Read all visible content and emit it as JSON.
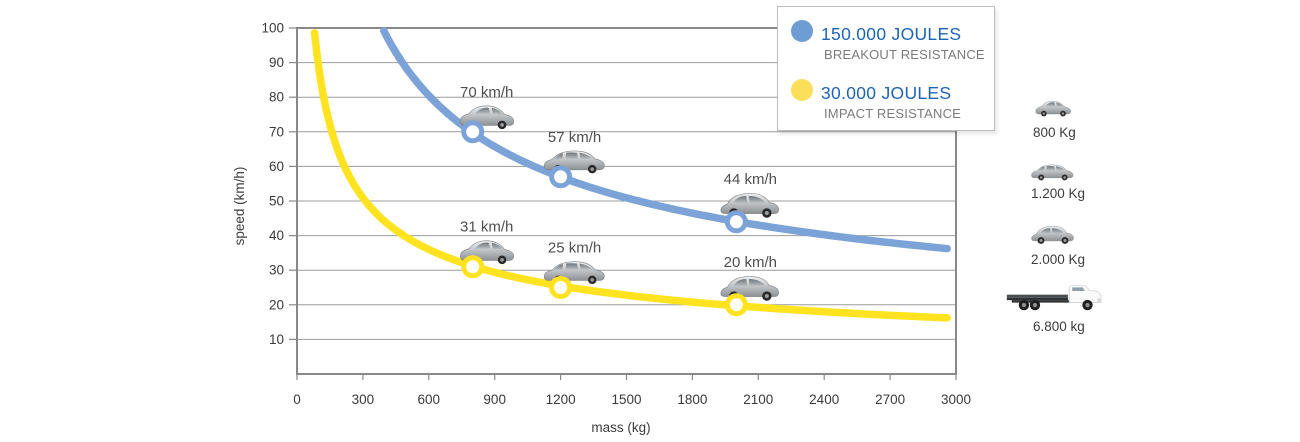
{
  "page": {
    "background": "#ffffff"
  },
  "chart_data": {
    "type": "line",
    "title": "",
    "xlabel": "mass (kg)",
    "ylabel": "speed (km/h)",
    "x_axis": {
      "min": 0,
      "max": 3000,
      "ticks": [
        0,
        300,
        600,
        900,
        1200,
        1500,
        1800,
        2100,
        2400,
        2700,
        3000
      ]
    },
    "y_axis": {
      "min": 0,
      "max": 100,
      "ticks": [
        10,
        20,
        30,
        40,
        50,
        60,
        70,
        80,
        90,
        100
      ]
    },
    "grid": "horizontal",
    "grid_color": "#9c9c9c",
    "axis_color": "#888888",
    "relationship": "speed_kmh = 3.6 * sqrt(2 * energy_joules / mass_kg)",
    "legend_position": "top-right",
    "series": [
      {
        "name": "150.000 JOULES",
        "subtitle": "BREAKOUT RESISTANCE",
        "energy_joules": 150000,
        "color": "#7ca3d7",
        "legend_color": "#6d9dd3",
        "mass_domain_kg": [
          395,
          2960
        ],
        "points": [
          {
            "mass_kg": 800,
            "speed_kmh": 70,
            "label": "70 km/h",
            "vehicle": "city-car"
          },
          {
            "mass_kg": 1200,
            "speed_kmh": 57,
            "label": "57 km/h",
            "vehicle": "hatchback"
          },
          {
            "mass_kg": 2000,
            "speed_kmh": 44,
            "label": "44 km/h",
            "vehicle": "suv"
          }
        ]
      },
      {
        "name": "30.000 JOULES",
        "subtitle": "IMPACT RESISTANCE",
        "energy_joules": 30000,
        "color": "#ffe320",
        "legend_color": "#fbdf5b",
        "mass_domain_kg": [
          80,
          2960
        ],
        "points": [
          {
            "mass_kg": 800,
            "speed_kmh": 31,
            "label": "31 km/h",
            "vehicle": "city-car"
          },
          {
            "mass_kg": 1200,
            "speed_kmh": 25,
            "label": "25 km/h",
            "vehicle": "hatchback"
          },
          {
            "mass_kg": 2000,
            "speed_kmh": 20,
            "label": "20 km/h",
            "vehicle": "suv"
          }
        ]
      }
    ]
  },
  "vehicle_key": {
    "items": [
      {
        "label": "800 Kg",
        "vehicle": "city-car"
      },
      {
        "label": "1.200 Kg",
        "vehicle": "hatchback"
      },
      {
        "label": "2.000 Kg",
        "vehicle": "suv"
      },
      {
        "label": "6.800 kg",
        "vehicle": "truck"
      }
    ]
  }
}
